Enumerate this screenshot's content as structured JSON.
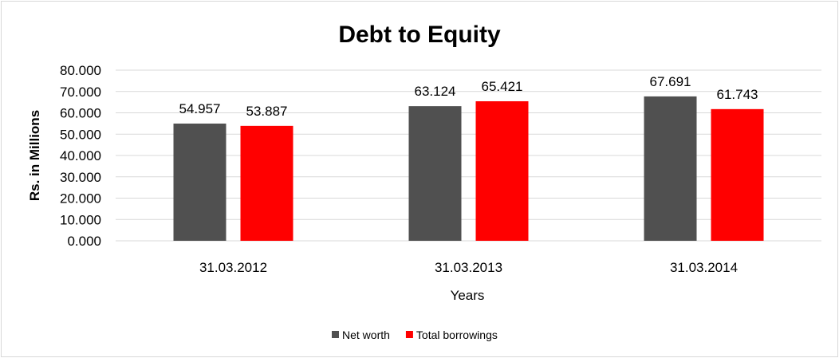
{
  "chart_data": {
    "type": "bar",
    "title": "Debt to Equity",
    "xlabel": "Years",
    "ylabel": "Rs. in Millions",
    "categories": [
      "31.03.2012",
      "31.03.2013",
      "31.03.2014"
    ],
    "series": [
      {
        "name": "Net worth",
        "color": "#505050",
        "values": [
          54.957,
          63.124,
          67.691
        ],
        "labels": [
          "54.957",
          "63.124",
          "67.691"
        ]
      },
      {
        "name": "Total borrowings",
        "color": "#ff0000",
        "values": [
          53.887,
          65.421,
          61.743
        ],
        "labels": [
          "53.887",
          "65.421",
          "61.743"
        ]
      }
    ],
    "ylim": [
      0,
      80
    ],
    "yticks": [
      "0.000",
      "10.000",
      "20.000",
      "30.000",
      "40.000",
      "50.000",
      "60.000",
      "70.000",
      "80.000"
    ],
    "grid": true,
    "legend": "bottom"
  }
}
